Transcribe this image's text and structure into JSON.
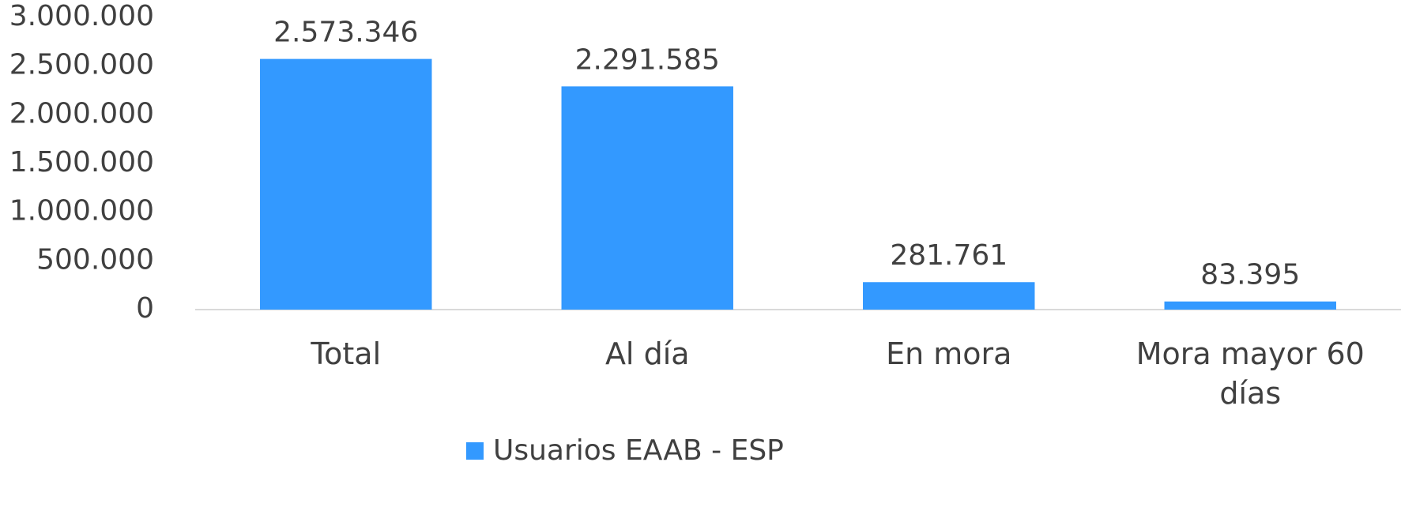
{
  "chart_data": {
    "type": "bar",
    "categories": [
      "Total",
      "Al día",
      "En mora",
      "Mora mayor 60 días"
    ],
    "series": [
      {
        "name": "Usuarios EAAB - ESP",
        "color": "#3399ff",
        "values": [
          2573346,
          2291585,
          281761,
          83395
        ],
        "value_labels": [
          "2.573.346",
          "2.291.585",
          "281.761",
          "83.395"
        ]
      }
    ],
    "ylim": [
      0,
      3000000
    ],
    "yticks": [
      0,
      {
        "value": 500000,
        "label": "500.000"
      },
      {
        "value": 1000000,
        "label": "1.000.000"
      },
      {
        "value": 1500000,
        "label": "1.500.000"
      },
      {
        "value": 2000000,
        "label": "2.000.000"
      },
      {
        "value": 2500000,
        "label": "2.500.000"
      },
      {
        "value": 3000000,
        "label": "3.000.000"
      }
    ],
    "grid": false,
    "legend": "bottom"
  }
}
